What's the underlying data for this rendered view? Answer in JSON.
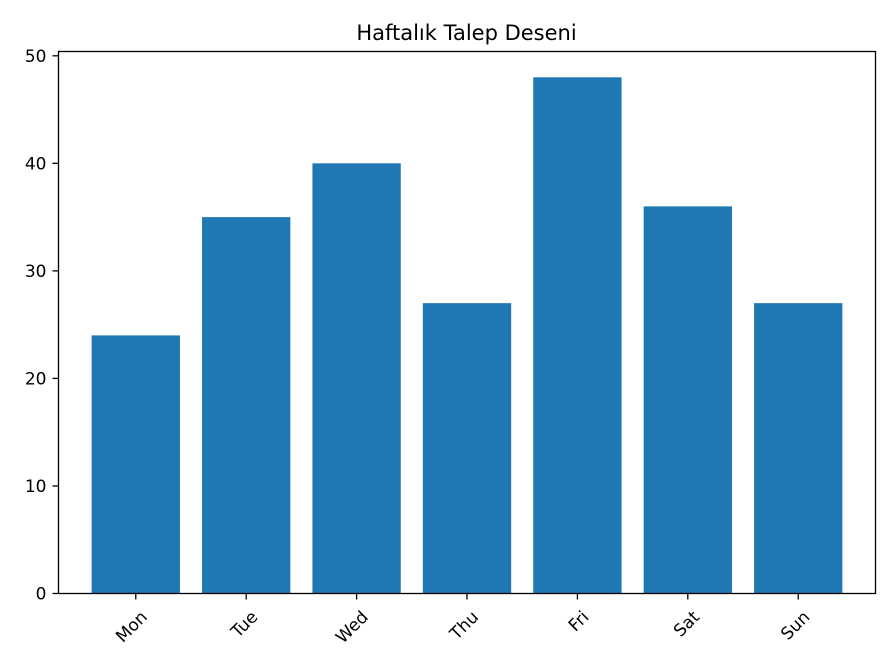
{
  "chart_data": {
    "type": "bar",
    "title": "Haftalık Talep Deseni",
    "xlabel": "",
    "ylabel": "",
    "categories": [
      "Mon",
      "Tue",
      "Wed",
      "Thu",
      "Fri",
      "Sat",
      "Sun"
    ],
    "values": [
      24,
      35,
      40,
      27,
      48,
      36,
      27
    ],
    "ylim": [
      0,
      50.4
    ],
    "yticks": [
      0,
      10,
      20,
      30,
      40,
      50
    ],
    "grid": false,
    "bar_color": "#1f77b4"
  }
}
